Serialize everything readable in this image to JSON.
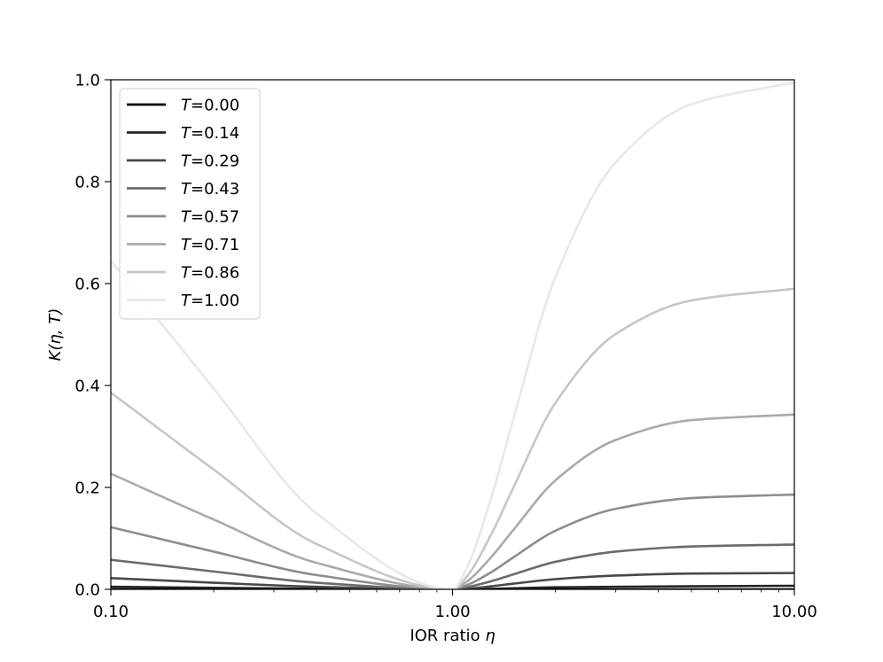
{
  "chart_data": {
    "type": "line",
    "xscale": "log",
    "xlim": [
      0.1,
      10.0
    ],
    "ylim": [
      0.0,
      1.0
    ],
    "xlabel": "IOR ratio η",
    "ylabel": "K(η, T)",
    "grid": false,
    "legend_position": "top-left",
    "x_ticks": [
      {
        "value": 0.1,
        "label": "0.10"
      },
      {
        "value": 1.0,
        "label": "1.00"
      },
      {
        "value": 10.0,
        "label": "10.00"
      }
    ],
    "y_ticks": [
      {
        "value": 0.0,
        "label": "0.0"
      },
      {
        "value": 0.2,
        "label": "0.2"
      },
      {
        "value": 0.4,
        "label": "0.4"
      },
      {
        "value": 0.6,
        "label": "0.6"
      },
      {
        "value": 0.8,
        "label": "0.8"
      },
      {
        "value": 1.0,
        "label": "1.0"
      }
    ],
    "x": [
      0.1,
      0.2,
      0.4,
      1.0,
      1.1,
      1.3,
      1.5,
      2.0,
      3.0,
      5.0,
      10.0
    ],
    "series": [
      {
        "name": "T=0.00",
        "label_var": "T",
        "label_value": "=0.00",
        "color": "#000000",
        "values": [
          0.0,
          0.0,
          0.0,
          0.0,
          0.0,
          0.0,
          0.0,
          0.0,
          0.0,
          0.0,
          0.0
        ]
      },
      {
        "name": "T=0.14",
        "label_var": "T",
        "label_value": "=0.14",
        "color": "#232323",
        "values": [
          0.005,
          0.003,
          0.001,
          0.0,
          0.0,
          0.001,
          0.002,
          0.004,
          0.005,
          0.006,
          0.007
        ]
      },
      {
        "name": "T=0.29",
        "label_var": "T",
        "label_value": "=0.29",
        "color": "#484848",
        "values": [
          0.022,
          0.013,
          0.005,
          0.0,
          0.001,
          0.006,
          0.011,
          0.02,
          0.027,
          0.031,
          0.032
        ]
      },
      {
        "name": "T=0.43",
        "label_var": "T",
        "label_value": "=0.43",
        "color": "#6b6b6b",
        "values": [
          0.058,
          0.035,
          0.013,
          0.0,
          0.004,
          0.016,
          0.029,
          0.054,
          0.074,
          0.084,
          0.088
        ]
      },
      {
        "name": "T=0.57",
        "label_var": "T",
        "label_value": "=0.57",
        "color": "#8d8d8d",
        "values": [
          0.122,
          0.074,
          0.028,
          0.0,
          0.008,
          0.034,
          0.062,
          0.115,
          0.158,
          0.179,
          0.186
        ]
      },
      {
        "name": "T=0.71",
        "label_var": "T",
        "label_value": "=0.71",
        "color": "#aaaaaa",
        "values": [
          0.227,
          0.137,
          0.052,
          0.0,
          0.015,
          0.064,
          0.115,
          0.214,
          0.293,
          0.332,
          0.343
        ]
      },
      {
        "name": "T=0.86",
        "label_var": "T",
        "label_value": "=0.86",
        "color": "#c6c6c6",
        "values": [
          0.386,
          0.235,
          0.089,
          0.0,
          0.025,
          0.109,
          0.197,
          0.366,
          0.501,
          0.567,
          0.59
        ]
      },
      {
        "name": "T=1.00",
        "label_var": "T",
        "label_value": "=1.00",
        "color": "#e8e8e8",
        "values": [
          0.645,
          0.394,
          0.149,
          0.0,
          0.042,
          0.182,
          0.33,
          0.613,
          0.838,
          0.952,
          0.995
        ]
      }
    ]
  }
}
